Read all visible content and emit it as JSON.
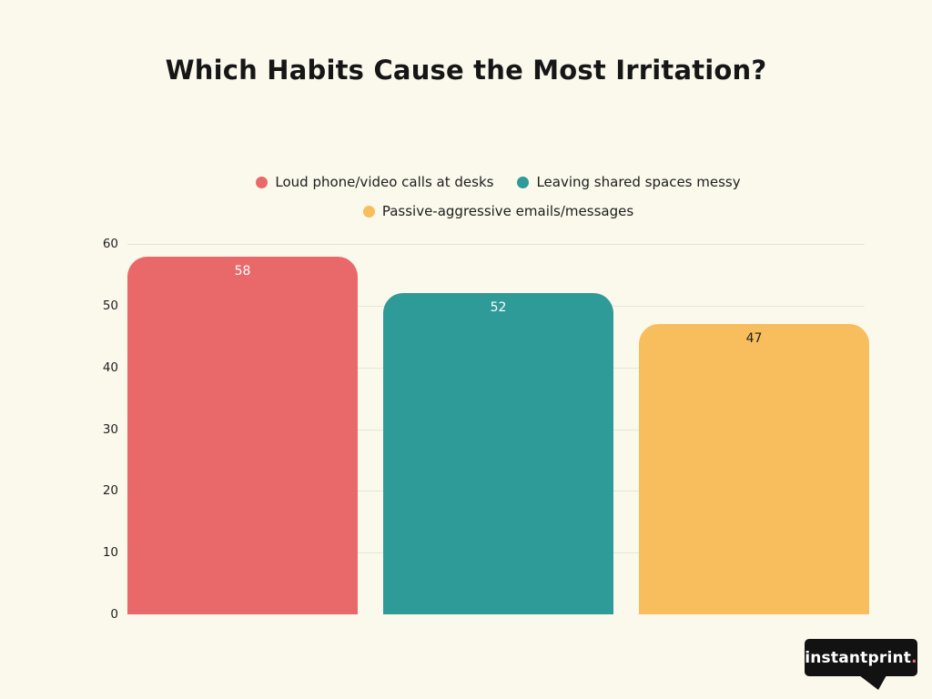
{
  "title": "Which Habits Cause the Most Irritation?",
  "colors": {
    "background": "#FAF9EC",
    "coral": "#E9696B",
    "teal": "#2F9B98",
    "yellow": "#F8BD5C",
    "gridline": "#E6E5DB",
    "text_dark": "#1d1d1d"
  },
  "legend": {
    "items": [
      {
        "label": "Loud phone/video calls at desks",
        "color": "#E9696B"
      },
      {
        "label": "Leaving shared spaces messy",
        "color": "#2F9B98"
      },
      {
        "label": "Passive-aggressive emails/messages",
        "color": "#F8BD5C"
      }
    ]
  },
  "chart_data": {
    "type": "bar",
    "title": "Which Habits Cause the Most Irritation?",
    "categories": [
      "Loud phone/video calls at desks",
      "Leaving shared spaces messy",
      "Passive-aggressive emails/messages"
    ],
    "values": [
      58,
      52,
      47
    ],
    "bar_colors": [
      "#E9696B",
      "#2F9B98",
      "#F8BD5C"
    ],
    "value_label_colors": [
      "#FFFFFF",
      "#FFFFFF",
      "#222222"
    ],
    "xlabel": "",
    "ylabel": "",
    "ylim": [
      0,
      60
    ],
    "yticks": [
      0,
      10,
      20,
      30,
      40,
      50,
      60
    ],
    "grid": true,
    "legend_position": "top-center"
  },
  "branding": {
    "logo_text": "instantprint",
    "logo_period": ".",
    "logo_bg": "#121212",
    "logo_text_color": "#FFFFFF",
    "logo_period_color": "#E9696B"
  }
}
